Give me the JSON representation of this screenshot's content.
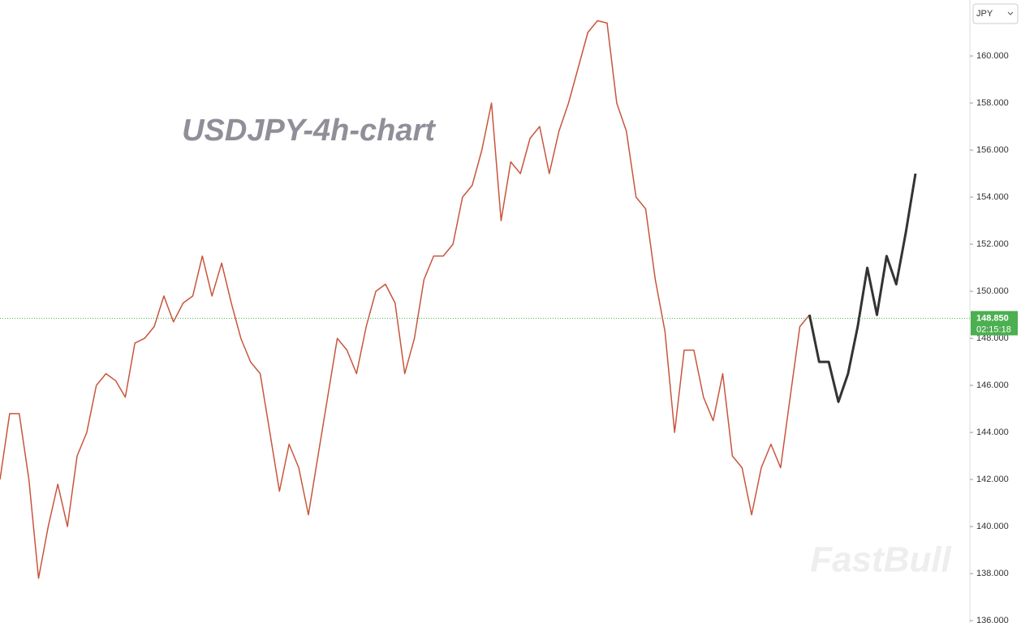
{
  "chart_data": {
    "type": "line",
    "title": "USDJPY-4h-chart",
    "watermark": "FastBull",
    "currency": "JPY",
    "current_price": {
      "value": 148.85,
      "label": "148.850"
    },
    "countdown": "02:15:18",
    "current_price_color": "#4caf50",
    "ylim": [
      135.9,
      162.38
    ],
    "yticks": [
      {
        "value": 136,
        "label": "136.000"
      },
      {
        "value": 138,
        "label": "138.000"
      },
      {
        "value": 140,
        "label": "140.000"
      },
      {
        "value": 142,
        "label": "142.000"
      },
      {
        "value": 144,
        "label": "144.000"
      },
      {
        "value": 146,
        "label": "146.000"
      },
      {
        "value": 148,
        "label": "148.000"
      },
      {
        "value": 150,
        "label": "150.000"
      },
      {
        "value": 152,
        "label": "152.000"
      },
      {
        "value": 154,
        "label": "154.000"
      },
      {
        "value": 156,
        "label": "156.000"
      },
      {
        "value": 158,
        "label": "158.000"
      },
      {
        "value": 160,
        "label": "160.000"
      }
    ],
    "series": [
      {
        "color": "#c8553d",
        "values": [
          142,
          144.8,
          144.8,
          142,
          137.8,
          140,
          141.8,
          140,
          143,
          144,
          146,
          146.5,
          146.2,
          145.5,
          147.8,
          148,
          148.5,
          149.8,
          148.7,
          149.5,
          149.8,
          151.5,
          149.8,
          151.2,
          149.5,
          148,
          147,
          146.5,
          144,
          141.5,
          143.5,
          142.5,
          140.5,
          143,
          145.5,
          148,
          147.5,
          146.5,
          148.5,
          150,
          150.3,
          149.5,
          146.5,
          148,
          150.5,
          151.5,
          151.5,
          152,
          154,
          154.5,
          156,
          158,
          153,
          155.5,
          155,
          156.5,
          157,
          155,
          156.8,
          158,
          159.5,
          161,
          161.5,
          161.4,
          158,
          156.8,
          154,
          153.5,
          150.5,
          148.3,
          144,
          147.5,
          147.5,
          145.5,
          144.5,
          146.5,
          143,
          142.5,
          140.5,
          142.5,
          143.5,
          142.5,
          145.5,
          148.5,
          149,
          null,
          null,
          null,
          null,
          null,
          null,
          null,
          null,
          null,
          null,
          null
        ]
      },
      {
        "color": "#333333",
        "values": [
          null,
          null,
          null,
          null,
          null,
          null,
          null,
          null,
          null,
          null,
          null,
          null,
          null,
          null,
          null,
          null,
          null,
          null,
          null,
          null,
          null,
          null,
          null,
          null,
          null,
          null,
          null,
          null,
          null,
          null,
          null,
          null,
          null,
          null,
          null,
          null,
          null,
          null,
          null,
          null,
          null,
          null,
          null,
          null,
          null,
          null,
          null,
          null,
          null,
          null,
          null,
          null,
          null,
          null,
          null,
          null,
          null,
          null,
          null,
          null,
          null,
          null,
          null,
          null,
          null,
          null,
          null,
          null,
          null,
          null,
          null,
          null,
          null,
          null,
          null,
          null,
          null,
          null,
          null,
          null,
          null,
          null,
          null,
          null,
          149,
          147,
          147,
          145.3,
          146.5,
          148.5,
          151,
          149,
          151.5,
          150.3,
          152.5,
          155
        ]
      }
    ]
  }
}
